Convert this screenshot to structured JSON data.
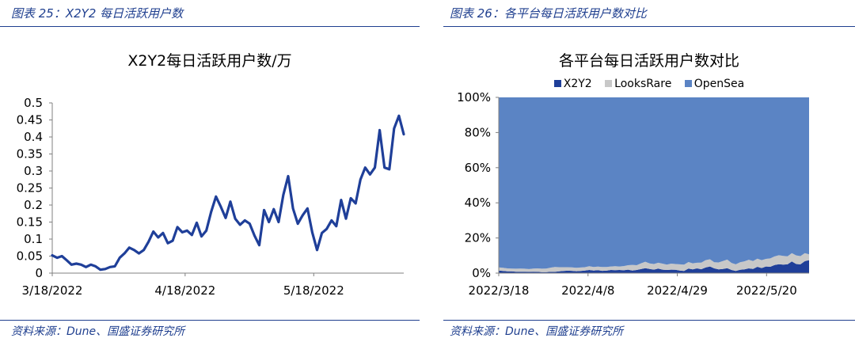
{
  "left_figure": {
    "caption": "图表 25：X2Y2 每日活跃用户数",
    "source": "资料来源：Dune、国盛证券研究所"
  },
  "right_figure": {
    "caption": "图表 26：各平台每日活跃用户数对比",
    "source": "资料来源：Dune、国盛证券研究所"
  },
  "colors": {
    "line": "#1f3f99",
    "x2y2": "#1f3f99",
    "looksrare": "#c8c8c8",
    "opensea": "#5b84c4",
    "rule": "#1f3f8f"
  },
  "chart_data": [
    {
      "type": "line",
      "title": "X2Y2每日活跃用户数/万",
      "xlabel": "",
      "ylabel": "",
      "ylim": [
        0,
        0.5
      ],
      "yticks": [
        "0",
        "0.05",
        "0.1",
        "0.15",
        "0.2",
        "0.25",
        "0.3",
        "0.35",
        "0.4",
        "0.45",
        "0.5"
      ],
      "xticks": [
        "3/18/2022",
        "4/18/2022",
        "5/18/2022"
      ],
      "x_start": "2022-03-18",
      "x_end": "2022-06-08",
      "grid": false,
      "series": [
        {
          "values": [
            0.052,
            0.045,
            0.05,
            0.038,
            0.025,
            0.028,
            0.025,
            0.018,
            0.025,
            0.02,
            0.01,
            0.012,
            0.018,
            0.02,
            0.045,
            0.058,
            0.075,
            0.068,
            0.058,
            0.068,
            0.092,
            0.122,
            0.105,
            0.118,
            0.088,
            0.095,
            0.135,
            0.12,
            0.125,
            0.112,
            0.148,
            0.108,
            0.125,
            0.18,
            0.225,
            0.195,
            0.162,
            0.21,
            0.16,
            0.142,
            0.155,
            0.145,
            0.11,
            0.082,
            0.185,
            0.15,
            0.188,
            0.15,
            0.23,
            0.285,
            0.19,
            0.145,
            0.17,
            0.19,
            0.12,
            0.068,
            0.118,
            0.13,
            0.155,
            0.138,
            0.215,
            0.16,
            0.22,
            0.205,
            0.275,
            0.31,
            0.29,
            0.31,
            0.42,
            0.31,
            0.305,
            0.425,
            0.462,
            0.408
          ]
        }
      ]
    },
    {
      "type": "area",
      "stacked": true,
      "title": "各平台每日活跃用户数对比",
      "ylim": [
        0,
        100
      ],
      "yticks": [
        "0%",
        "20%",
        "40%",
        "60%",
        "80%",
        "100%"
      ],
      "xticks": [
        "2022/3/18",
        "2022/4/8",
        "2022/4/29",
        "2022/5/20"
      ],
      "x_start": "2022-03-18",
      "x_end": "2022-05-30",
      "legend": "top",
      "series": [
        {
          "name": "X2Y2",
          "values": [
            1.5,
            1.2,
            1,
            1,
            0.8,
            0.8,
            0.8,
            0.7,
            0.8,
            0.7,
            0.6,
            0.6,
            0.7,
            0.7,
            1,
            1.2,
            1.4,
            1.3,
            1.1,
            1.2,
            1.5,
            1.8,
            1.5,
            1.7,
            1.3,
            1.4,
            1.8,
            1.7,
            1.8,
            1.6,
            2,
            1.5,
            1.8,
            2.3,
            2.8,
            2.4,
            2,
            2.6,
            2,
            1.8,
            2,
            1.9,
            1.5,
            1.2,
            2.6,
            2.1,
            2.7,
            2.2,
            3.2,
            3.8,
            2.7,
            2.1,
            2.4,
            2.8,
            1.8,
            1.2,
            1.9,
            2.1,
            2.7,
            2.4,
            3.6,
            2.9,
            3.8,
            3.6,
            4.6,
            5.1,
            4.8,
            5,
            6.6,
            5.2,
            5,
            6.8,
            7.4
          ]
        },
        {
          "name": "LooksRare",
          "values": [
            1.8,
            1.8,
            1.7,
            1.6,
            1.7,
            1.8,
            1.7,
            1.6,
            1.8,
            2,
            1.9,
            2,
            2.4,
            2.8,
            2.4,
            2.2,
            2,
            2,
            1.9,
            2,
            1.9,
            2.1,
            2,
            2,
            2.2,
            2.1,
            2,
            2.2,
            2,
            2.4,
            2.5,
            3.2,
            2.7,
            3.3,
            3.7,
            3.1,
            3.2,
            3.3,
            3.4,
            3,
            3.4,
            3.3,
            3.5,
            3.6,
            3.7,
            3.5,
            3.2,
            3.8,
            4.2,
            4.1,
            3.5,
            4,
            4.5,
            4.9,
            4,
            3.8,
            4.3,
            4.6,
            4.9,
            4.5,
            4.6,
            4.5,
            4.3,
            4.8,
            4.9,
            5.1,
            5,
            4.6,
            4.8,
            4.9,
            4.7,
            4.6,
            3.3
          ]
        },
        {
          "name": "OpenSea",
          "values": [
            96.7,
            97,
            97.3,
            97.4,
            97.5,
            97.4,
            97.5,
            97.7,
            97.4,
            97.3,
            97.5,
            97.4,
            96.9,
            96.5,
            96.6,
            96.6,
            96.6,
            96.7,
            97,
            96.8,
            96.6,
            96.1,
            96.5,
            96.3,
            96.5,
            96.5,
            96.2,
            96.1,
            96.2,
            96,
            95.5,
            95.3,
            95.5,
            94.4,
            93.5,
            94.5,
            94.8,
            94.1,
            94.6,
            95.2,
            94.6,
            94.8,
            95,
            95.2,
            93.7,
            94.4,
            94.1,
            94,
            92.6,
            92.1,
            93.8,
            93.9,
            93.1,
            92.3,
            94.2,
            95,
            93.8,
            93.3,
            92.4,
            93.1,
            91.8,
            92.6,
            91.9,
            91.6,
            90.5,
            89.8,
            90.2,
            90.4,
            88.6,
            89.9,
            90.3,
            88.6,
            89.3
          ]
        }
      ]
    }
  ]
}
